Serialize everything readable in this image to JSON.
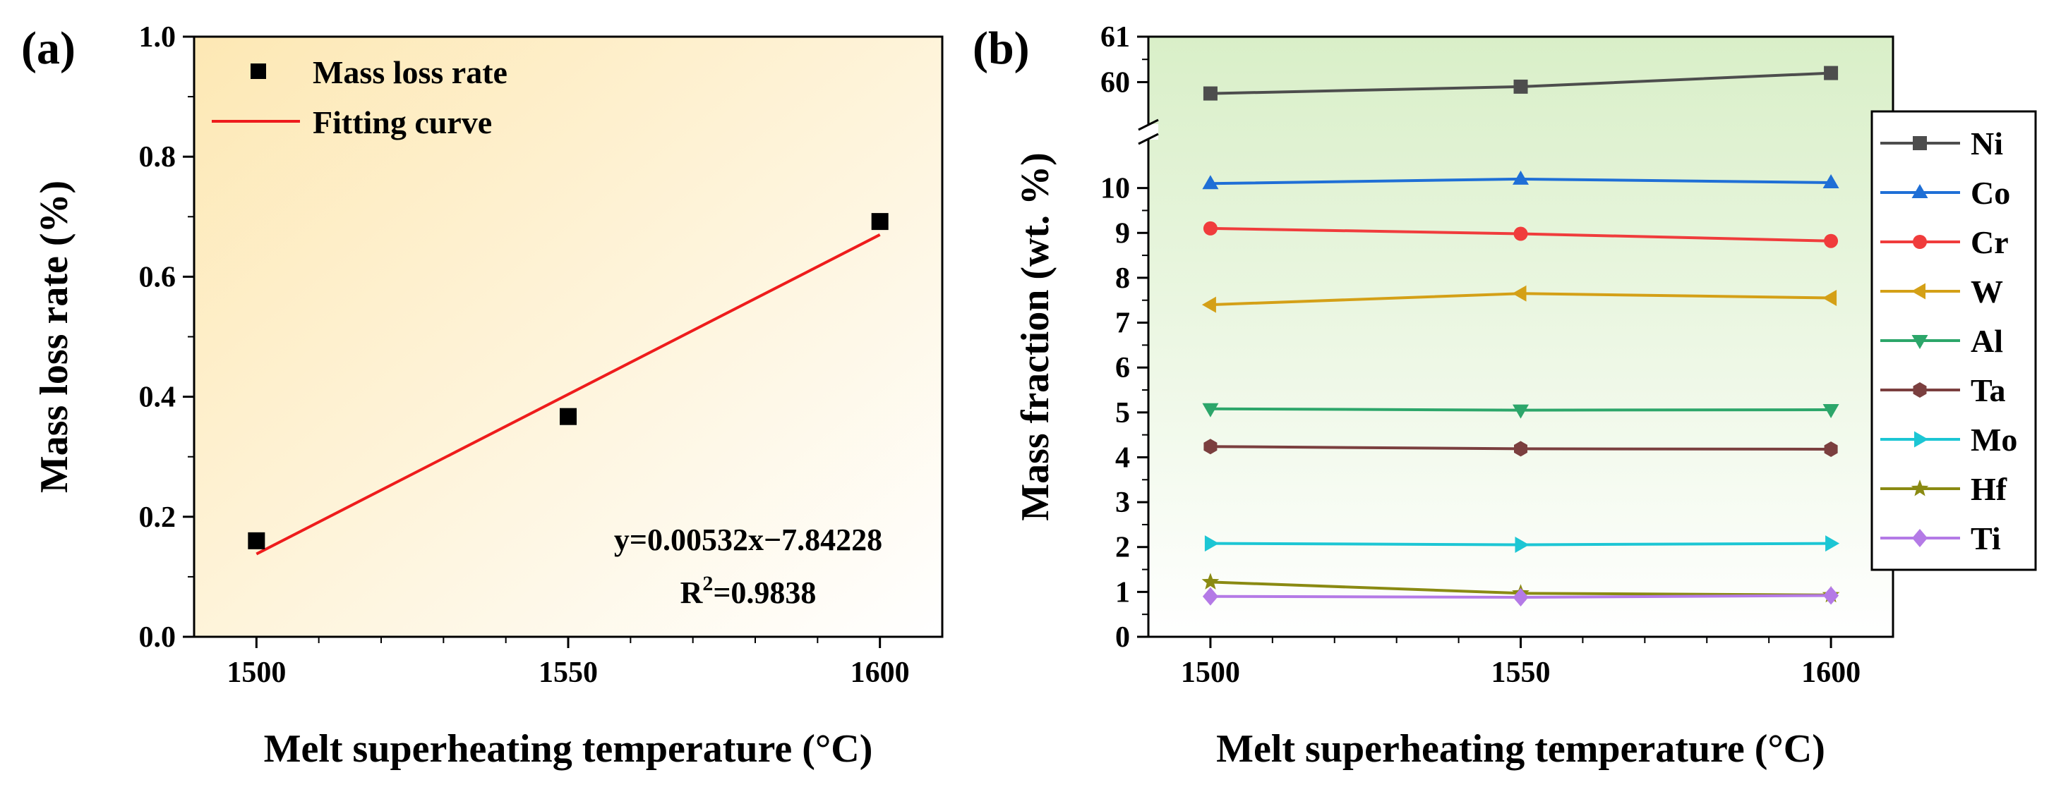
{
  "chart_data": [
    {
      "panel_label": "(a)",
      "type": "scatter",
      "xlabel": "Melt superheating temperature (°C)",
      "ylabel": "Mass loss rate (%)",
      "xlim": [
        1490,
        1610
      ],
      "ylim": [
        0.0,
        1.0
      ],
      "xticks": [
        1500,
        1550,
        1600
      ],
      "yticks": [
        0.0,
        0.2,
        0.4,
        0.6,
        0.8,
        1.0
      ],
      "ytick_labels": [
        "0.0",
        "0.2",
        "0.4",
        "0.6",
        "0.8",
        "1.0"
      ],
      "series": [
        {
          "name": "Mass loss rate",
          "kind": "scatter",
          "color": "#000000",
          "x": [
            1500,
            1550,
            1600
          ],
          "y": [
            0.16,
            0.367,
            0.692
          ]
        },
        {
          "name": "Fitting curve",
          "kind": "line",
          "color": "#ee1c1c",
          "x": [
            1500,
            1600
          ],
          "y": [
            0.138,
            0.67
          ]
        }
      ],
      "annotation": {
        "equation": "y=0.00532x−7.84228",
        "r2_prefix": "R",
        "r2_sup": "2",
        "r2_value": "=0.9838"
      },
      "legend_position": "top-left",
      "background_gradient": [
        "#fde8b4",
        "#ffffff"
      ]
    },
    {
      "panel_label": "(b)",
      "type": "line",
      "xlabel": "Melt superheating temperature (°C)",
      "ylabel": "Mass fraction (wt. %)",
      "xlim": [
        1490,
        1610
      ],
      "ylim_lower": [
        0,
        11
      ],
      "ylim_upper": [
        59.2,
        61
      ],
      "yticks_lower": [
        0,
        1,
        2,
        3,
        4,
        5,
        6,
        7,
        8,
        9,
        10
      ],
      "yticks_upper": [
        60,
        61
      ],
      "xticks": [
        1500,
        1550,
        1600
      ],
      "axis_break": true,
      "series": [
        {
          "name": "Ni",
          "color": "#4d4d4d",
          "marker": "square",
          "x": [
            1500,
            1550,
            1600
          ],
          "y": [
            59.75,
            59.9,
            60.2
          ]
        },
        {
          "name": "Co",
          "color": "#1f6fd6",
          "marker": "triangle-up",
          "x": [
            1500,
            1550,
            1600
          ],
          "y": [
            10.1,
            10.2,
            10.12
          ]
        },
        {
          "name": "Cr",
          "color": "#f03c3c",
          "marker": "circle",
          "x": [
            1500,
            1550,
            1600
          ],
          "y": [
            9.1,
            8.98,
            8.82
          ]
        },
        {
          "name": "W",
          "color": "#d4a017",
          "marker": "triangle-left",
          "x": [
            1500,
            1550,
            1600
          ],
          "y": [
            7.4,
            7.65,
            7.55
          ]
        },
        {
          "name": "Al",
          "color": "#2ca66a",
          "marker": "triangle-down",
          "x": [
            1500,
            1550,
            1600
          ],
          "y": [
            5.08,
            5.05,
            5.06
          ]
        },
        {
          "name": "Ta",
          "color": "#7b3f3f",
          "marker": "hexagon",
          "x": [
            1500,
            1550,
            1600
          ],
          "y": [
            4.24,
            4.19,
            4.18
          ]
        },
        {
          "name": "Mo",
          "color": "#1cc6d4",
          "marker": "triangle-right",
          "x": [
            1500,
            1550,
            1600
          ],
          "y": [
            2.08,
            2.05,
            2.08
          ]
        },
        {
          "name": "Hf",
          "color": "#8a8a12",
          "marker": "star",
          "x": [
            1500,
            1550,
            1600
          ],
          "y": [
            1.22,
            0.97,
            0.93
          ]
        },
        {
          "name": "Ti",
          "color": "#b47ae6",
          "marker": "diamond",
          "x": [
            1500,
            1550,
            1600
          ],
          "y": [
            0.9,
            0.88,
            0.92
          ]
        }
      ],
      "legend_position": "right",
      "background_gradient": [
        "#d9efc8",
        "#ffffff"
      ]
    }
  ]
}
